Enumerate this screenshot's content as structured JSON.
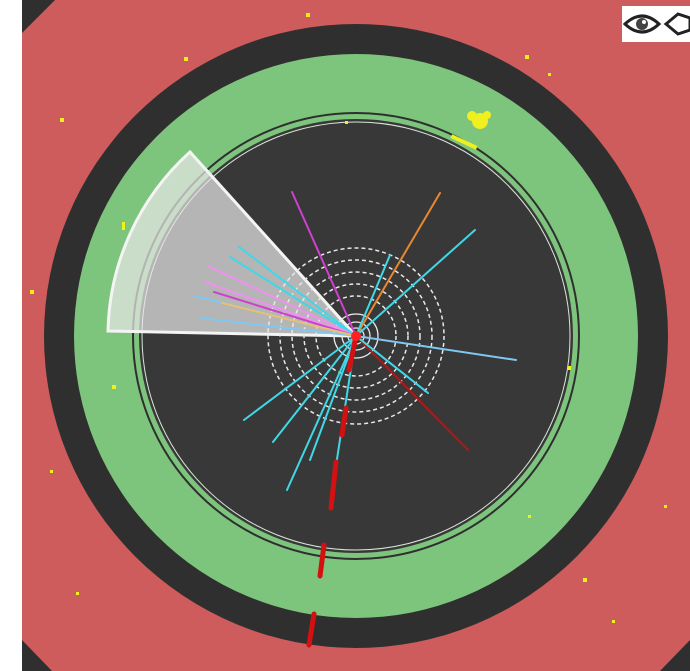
{
  "event_display": {
    "view": "transverse",
    "colors": {
      "background": "#ffffff",
      "outer_region": "#cf5c5c",
      "dark_ring": "#2f2f2f",
      "green_ring": "#7dc47d",
      "inner_detector": "#383838",
      "tracker_circles": "#e8e8e8",
      "jet_cone": "#e6e6e6",
      "energy_deposits": "#f0f020",
      "muon_track": "#d41010",
      "track_cyan": "#40d8e8",
      "track_magenta": "#d040d0",
      "track_orange": "#e88830",
      "track_red": "#b01818",
      "track_pink": "#f090f0",
      "track_lightblue": "#80c8f0",
      "vertex": "#ff2020"
    },
    "icons": {
      "eye": "eye-icon",
      "fish": "fish-icon"
    }
  }
}
